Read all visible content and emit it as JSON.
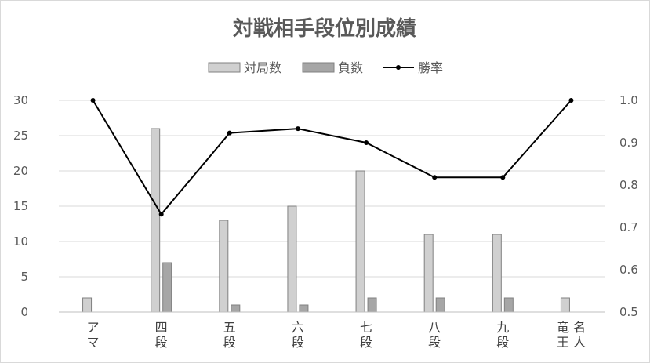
{
  "chart_data": {
    "type": "bar",
    "title": "対戦相手段位別成績",
    "categories": [
      [
        "ア",
        "マ"
      ],
      [
        "四",
        "段"
      ],
      [
        "五",
        "段"
      ],
      [
        "六",
        "段"
      ],
      [
        "七",
        "段"
      ],
      [
        "八",
        "段"
      ],
      [
        "九",
        "段"
      ],
      [
        "竜 名",
        "王 人"
      ]
    ],
    "series": [
      {
        "name": "対局数",
        "kind": "bar",
        "axis": "left",
        "color": "#d0d0d0",
        "values": [
          2,
          26,
          13,
          15,
          20,
          11,
          11,
          2
        ]
      },
      {
        "name": "負数",
        "kind": "bar",
        "axis": "left",
        "color": "#a6a6a6",
        "values": [
          0,
          7,
          1,
          1,
          2,
          2,
          2,
          0
        ]
      },
      {
        "name": "勝率",
        "kind": "line",
        "axis": "right",
        "color": "#000000",
        "values": [
          1.0,
          0.731,
          0.923,
          0.933,
          0.9,
          0.818,
          0.818,
          1.0
        ]
      }
    ],
    "y_left": {
      "range": [
        0,
        30
      ],
      "ticks": [
        "0",
        "5",
        "10",
        "15",
        "20",
        "25",
        "30"
      ]
    },
    "y_right": {
      "range": [
        0.5,
        1.0
      ],
      "ticks": [
        "0.5",
        "0.6",
        "0.7",
        "0.8",
        "0.9",
        "1.0"
      ]
    },
    "grid": true,
    "legend_position": "top"
  }
}
